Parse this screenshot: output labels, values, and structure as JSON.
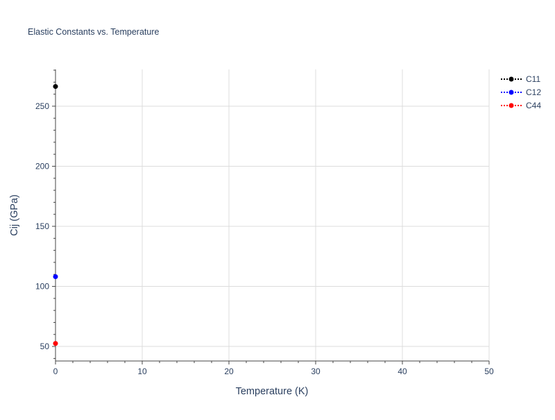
{
  "chart_data": {
    "type": "scatter",
    "title": "Elastic Constants vs. Temperature",
    "xlabel": "Temperature (K)",
    "ylabel": "Cij (GPa)",
    "xlim": [
      0,
      50
    ],
    "ylim": [
      37.9,
      280.6
    ],
    "xticks": [
      0,
      10,
      20,
      30,
      40,
      50
    ],
    "yticks": [
      50,
      100,
      150,
      200,
      250
    ],
    "grid": true,
    "legend_position": "top-right",
    "series": [
      {
        "name": "C11",
        "color": "#000000",
        "line": "dotted",
        "x": [
          0
        ],
        "y": [
          266.4
        ]
      },
      {
        "name": "C12",
        "color": "#0000ff",
        "line": "dotted",
        "x": [
          0
        ],
        "y": [
          108.1
        ]
      },
      {
        "name": "C44",
        "color": "#ff0000",
        "line": "dotted",
        "x": [
          0
        ],
        "y": [
          52.5
        ]
      }
    ]
  }
}
